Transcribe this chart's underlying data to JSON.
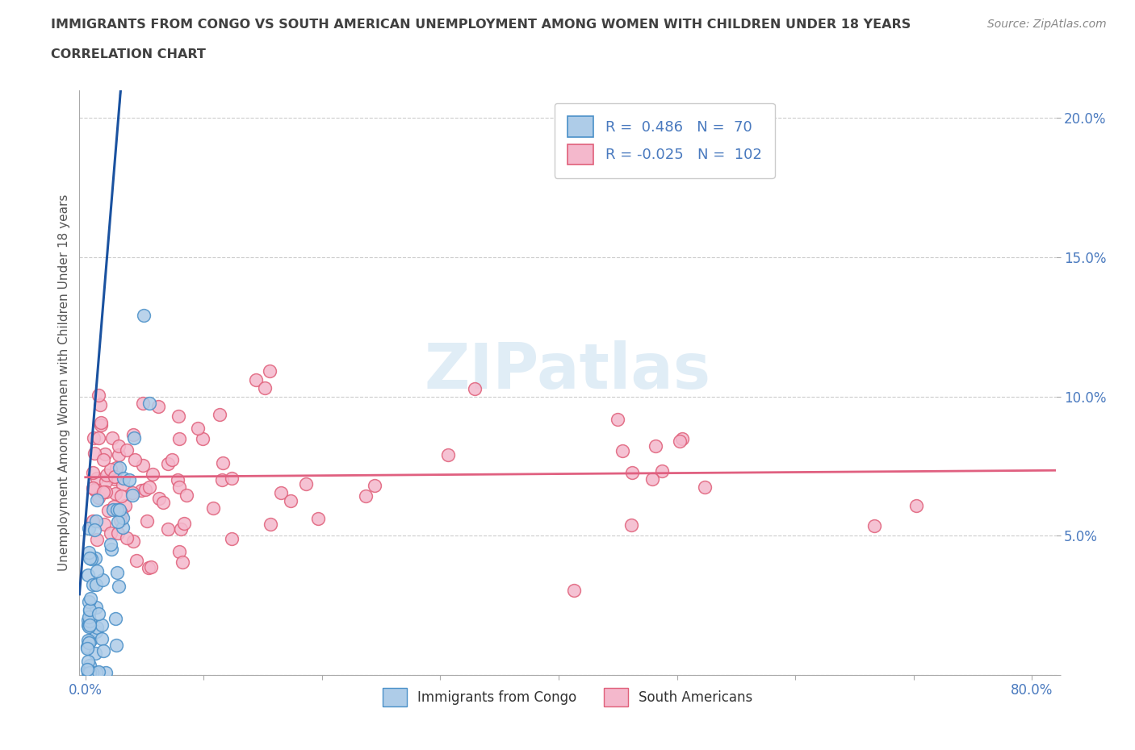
{
  "title": "IMMIGRANTS FROM CONGO VS SOUTH AMERICAN UNEMPLOYMENT AMONG WOMEN WITH CHILDREN UNDER 18 YEARS",
  "subtitle": "CORRELATION CHART",
  "source": "Source: ZipAtlas.com",
  "ylabel": "Unemployment Among Women with Children Under 18 years",
  "watermark": "ZIPatlas",
  "xlim": [
    -0.005,
    0.82
  ],
  "ylim": [
    0.0,
    0.21
  ],
  "xtick_pos": [
    0.0,
    0.1,
    0.2,
    0.3,
    0.4,
    0.5,
    0.6,
    0.7,
    0.8
  ],
  "xticklabels": [
    "0.0%",
    "",
    "",
    "",
    "",
    "",
    "",
    "",
    "80.0%"
  ],
  "ytick_pos": [
    0.0,
    0.05,
    0.1,
    0.15,
    0.2
  ],
  "yticklabels": [
    "",
    "5.0%",
    "10.0%",
    "15.0%",
    "20.0%"
  ],
  "congo_color": "#aecce8",
  "congo_edge": "#4a90c8",
  "sa_color": "#f4b8cc",
  "sa_edge": "#e0607a",
  "trend_congo_color": "#1a52a0",
  "trend_sa_color": "#e06080",
  "R_congo": 0.486,
  "N_congo": 70,
  "R_sa": -0.025,
  "N_sa": 102,
  "tick_color": "#4a7abf",
  "title_color": "#404040",
  "source_color": "#888888"
}
